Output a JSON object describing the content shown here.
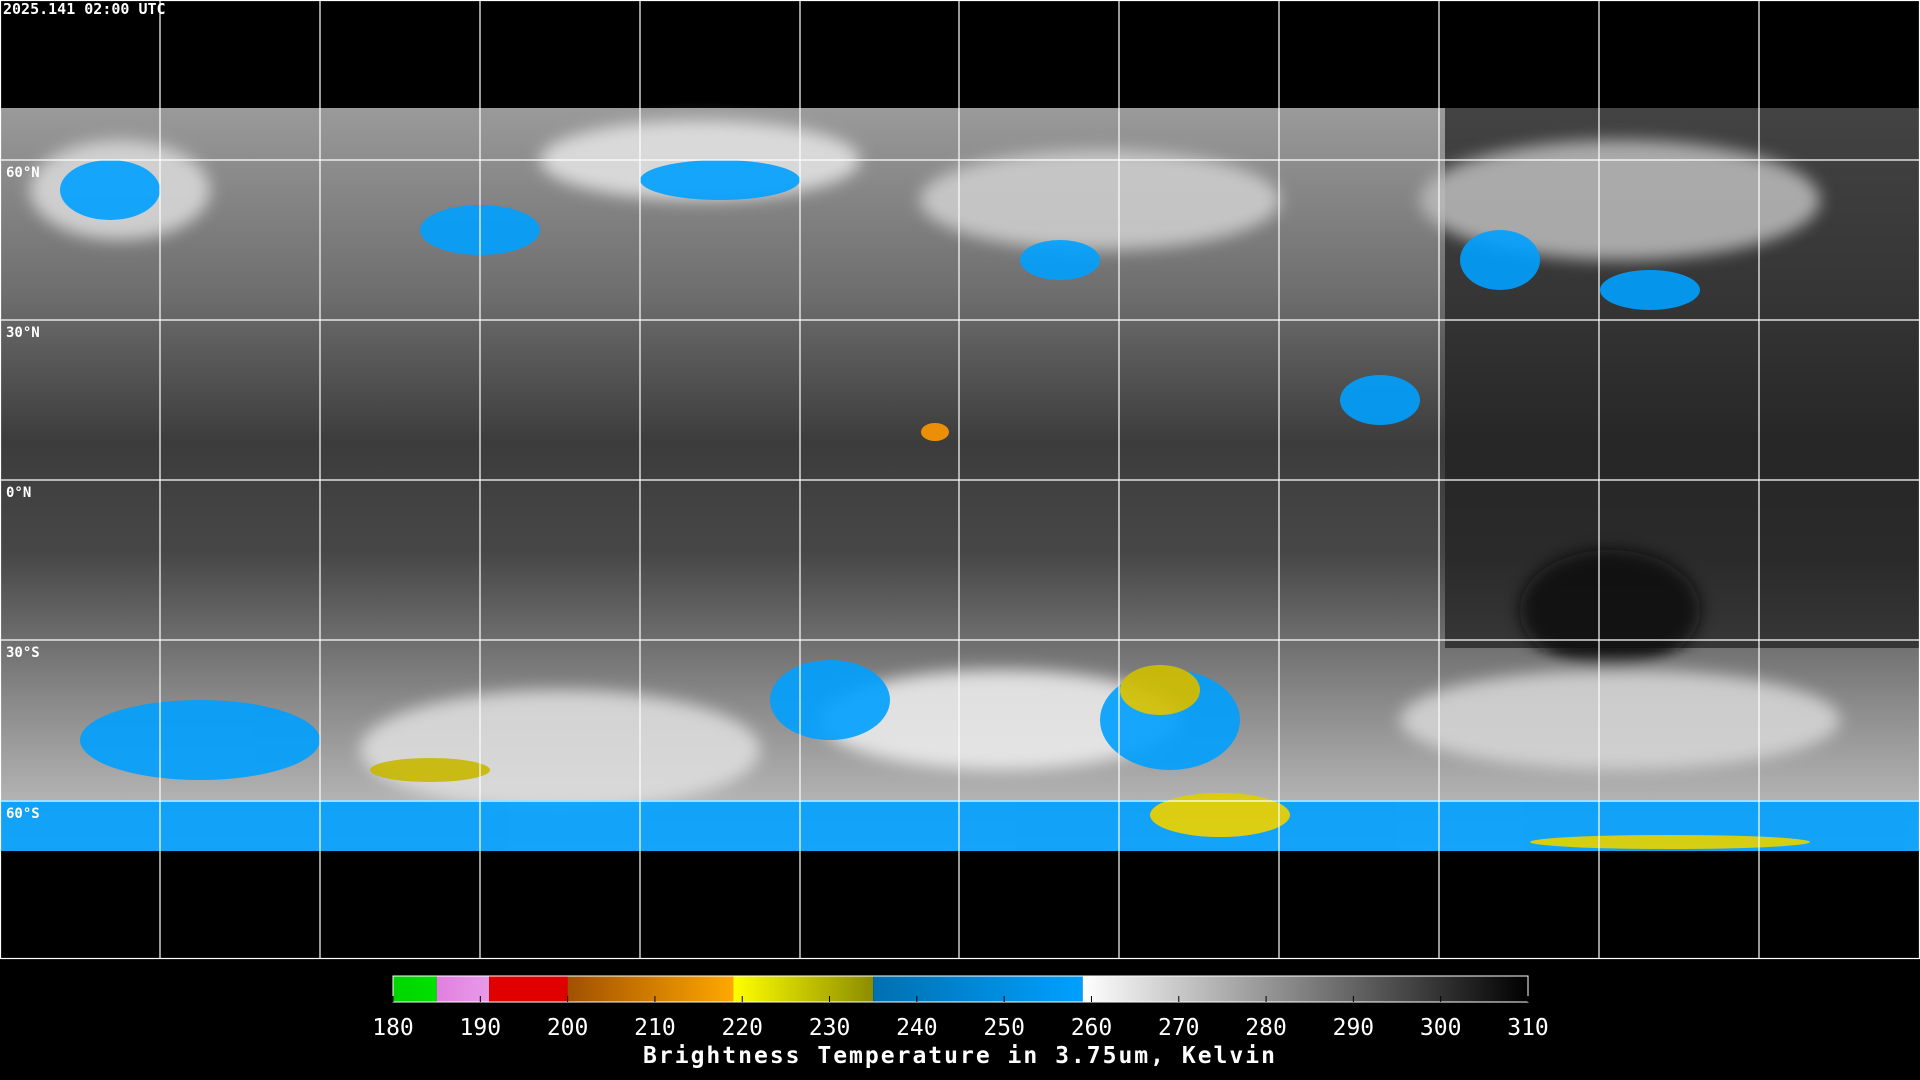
{
  "timestamp": "2025.141 02:00 UTC",
  "latitude_labels": [
    "60°N",
    "30°N",
    "0°N",
    "30°S",
    "60°S"
  ],
  "colorbar": {
    "title": "Brightness Temperature in 3.75um, Kelvin",
    "lim": [
      180,
      310
    ],
    "ticks": [
      180,
      190,
      200,
      210,
      220,
      230,
      240,
      250,
      260,
      270,
      280,
      290,
      300,
      310
    ],
    "segments": [
      {
        "from": 180,
        "to": 185,
        "color_start": "#00d400",
        "color_end": "#00e000"
      },
      {
        "from": 185,
        "to": 191,
        "color_start": "#e080e0",
        "color_end": "#e89ae8"
      },
      {
        "from": 191,
        "to": 200,
        "color_start": "#e00000",
        "color_end": "#e00000"
      },
      {
        "from": 200,
        "to": 219,
        "color_start": "#a05000",
        "color_end": "#ffa800"
      },
      {
        "from": 219,
        "to": 235,
        "color_start": "#ffff00",
        "color_end": "#8c8c00"
      },
      {
        "from": 235,
        "to": 259,
        "color_start": "#0070b0",
        "color_end": "#00a0ff"
      },
      {
        "from": 259,
        "to": 310,
        "color_start": "#ffffff",
        "color_end": "#000000"
      }
    ]
  }
}
